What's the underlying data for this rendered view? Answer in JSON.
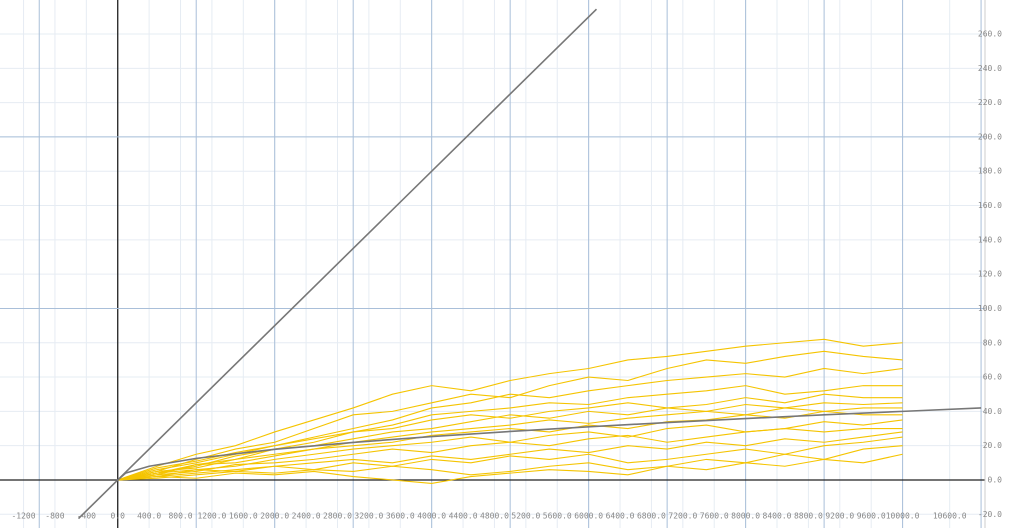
{
  "chart_data": {
    "type": "line",
    "xlim": [
      -1500,
      11050
    ],
    "ylim": [
      -24.5,
      274
    ],
    "xticks": [
      {
        "value": -1200,
        "label": "-1200"
      },
      {
        "value": -800,
        "label": "-800"
      },
      {
        "value": -400,
        "label": "-400"
      },
      {
        "value": 0,
        "label": "0.0"
      },
      {
        "value": 400,
        "label": "400.0"
      },
      {
        "value": 800,
        "label": "800.0"
      },
      {
        "value": 1200,
        "label": "1200.0"
      },
      {
        "value": 1600,
        "label": "1600.0"
      },
      {
        "value": 2000,
        "label": "2000.0"
      },
      {
        "value": 2400,
        "label": "2400.0"
      },
      {
        "value": 2800,
        "label": "2800.0"
      },
      {
        "value": 3200,
        "label": "3200.0"
      },
      {
        "value": 3600,
        "label": "3600.0"
      },
      {
        "value": 4000,
        "label": "4000.0"
      },
      {
        "value": 4400,
        "label": "4400.0"
      },
      {
        "value": 4800,
        "label": "4800.0"
      },
      {
        "value": 5200,
        "label": "5200.0"
      },
      {
        "value": 5600,
        "label": "5600.0"
      },
      {
        "value": 6000,
        "label": "6000.0"
      },
      {
        "value": 6400,
        "label": "6400.0"
      },
      {
        "value": 6800,
        "label": "6800.0"
      },
      {
        "value": 7200,
        "label": "7200.0"
      },
      {
        "value": 7600,
        "label": "7600.0"
      },
      {
        "value": 8000,
        "label": "8000.0"
      },
      {
        "value": 8400,
        "label": "8400.0"
      },
      {
        "value": 8800,
        "label": "8800.0"
      },
      {
        "value": 9200,
        "label": "9200.0"
      },
      {
        "value": 9600,
        "label": "9600.0"
      },
      {
        "value": 10000,
        "label": "10000.0"
      },
      {
        "value": 10600,
        "label": "10600.0"
      }
    ],
    "yticks": [
      {
        "value": -20,
        "label": "-20.0"
      },
      {
        "value": 0,
        "label": "0.0"
      },
      {
        "value": 20,
        "label": "20.0"
      },
      {
        "value": 40,
        "label": "40.0"
      },
      {
        "value": 60,
        "label": "60.0"
      },
      {
        "value": 80,
        "label": "80.0"
      },
      {
        "value": 100,
        "label": "100.0"
      },
      {
        "value": 120,
        "label": "120.0"
      },
      {
        "value": 140,
        "label": "140.0"
      },
      {
        "value": 160,
        "label": "160.0"
      },
      {
        "value": 180,
        "label": "180.0"
      },
      {
        "value": 200,
        "label": "200.0"
      },
      {
        "value": 220,
        "label": "220.0"
      },
      {
        "value": 240,
        "label": "240.0"
      },
      {
        "value": 260,
        "label": "260.0"
      }
    ],
    "xgrid_major": [
      -1000,
      0,
      1000,
      2000,
      3000,
      4000,
      5000,
      6000,
      7000,
      8000,
      9000,
      10000,
      11000
    ],
    "ygrid_major": [
      0,
      100,
      200
    ],
    "grid": true,
    "series": [
      {
        "color": "#f5c400",
        "x": [
          0,
          500,
          1000,
          1500,
          2000,
          2500,
          3000,
          3500,
          4000,
          4500,
          5000,
          5500,
          6000,
          6500,
          7000,
          7500,
          8000,
          8500,
          9000,
          9500,
          10000
        ],
        "values": [
          0,
          8,
          15,
          20,
          28,
          35,
          42,
          50,
          55,
          52,
          58,
          62,
          65,
          70,
          72,
          75,
          78,
          80,
          82,
          78,
          80
        ]
      },
      {
        "color": "#f5c400",
        "x": [
          0,
          500,
          1000,
          1500,
          2000,
          2500,
          3000,
          3500,
          4000,
          4500,
          5000,
          5500,
          6000,
          6500,
          7000,
          7500,
          8000,
          8500,
          9000,
          9500,
          10000
        ],
        "values": [
          0,
          5,
          12,
          18,
          22,
          30,
          38,
          40,
          45,
          50,
          48,
          55,
          60,
          58,
          65,
          70,
          68,
          72,
          75,
          72,
          70
        ]
      },
      {
        "color": "#f5c400",
        "x": [
          0,
          500,
          1000,
          1500,
          2000,
          2500,
          3000,
          3500,
          4000,
          4500,
          5000,
          5500,
          6000,
          6500,
          7000,
          7500,
          8000,
          8500,
          9000,
          9500,
          10000
        ],
        "values": [
          0,
          6,
          10,
          15,
          20,
          25,
          30,
          35,
          42,
          45,
          50,
          48,
          52,
          55,
          58,
          60,
          62,
          60,
          65,
          62,
          65
        ]
      },
      {
        "color": "#f5c400",
        "x": [
          0,
          500,
          1000,
          1500,
          2000,
          2500,
          3000,
          3500,
          4000,
          4500,
          5000,
          5500,
          6000,
          6500,
          7000,
          7500,
          8000,
          8500,
          9000,
          9500,
          10000
        ],
        "values": [
          0,
          4,
          8,
          14,
          18,
          22,
          28,
          32,
          38,
          40,
          42,
          45,
          44,
          48,
          50,
          52,
          55,
          50,
          52,
          55,
          55
        ]
      },
      {
        "color": "#f5c400",
        "x": [
          0,
          500,
          1000,
          1500,
          2000,
          2500,
          3000,
          3500,
          4000,
          4500,
          5000,
          5500,
          6000,
          6500,
          7000,
          7500,
          8000,
          8500,
          9000,
          9500,
          10000
        ],
        "values": [
          0,
          7,
          11,
          16,
          20,
          24,
          28,
          30,
          35,
          38,
          36,
          40,
          42,
          45,
          42,
          44,
          48,
          45,
          50,
          48,
          48
        ]
      },
      {
        "color": "#f5c400",
        "x": [
          0,
          500,
          1000,
          1500,
          2000,
          2500,
          3000,
          3500,
          4000,
          4500,
          5000,
          5500,
          6000,
          6500,
          7000,
          7500,
          8000,
          8500,
          9000,
          9500,
          10000
        ],
        "values": [
          0,
          3,
          9,
          12,
          18,
          20,
          24,
          28,
          30,
          34,
          38,
          36,
          40,
          38,
          42,
          40,
          44,
          42,
          45,
          44,
          45
        ]
      },
      {
        "color": "#f5c400",
        "x": [
          0,
          500,
          1000,
          1500,
          2000,
          2500,
          3000,
          3500,
          4000,
          4500,
          5000,
          5500,
          6000,
          6500,
          7000,
          7500,
          8000,
          8500,
          9000,
          9500,
          10000
        ],
        "values": [
          0,
          5,
          7,
          12,
          15,
          18,
          22,
          25,
          28,
          30,
          32,
          35,
          33,
          36,
          38,
          40,
          38,
          42,
          40,
          42,
          42
        ]
      },
      {
        "color": "#f5c400",
        "x": [
          0,
          500,
          1000,
          1500,
          2000,
          2500,
          3000,
          3500,
          4000,
          4500,
          5000,
          5500,
          6000,
          6500,
          7000,
          7500,
          8000,
          8500,
          9000,
          9500,
          10000
        ],
        "values": [
          0,
          4,
          9,
          10,
          14,
          18,
          20,
          22,
          26,
          28,
          30,
          28,
          32,
          30,
          34,
          35,
          38,
          36,
          40,
          38,
          38
        ]
      },
      {
        "color": "#f5c400",
        "x": [
          0,
          500,
          1000,
          1500,
          2000,
          2500,
          3000,
          3500,
          4000,
          4500,
          5000,
          5500,
          6000,
          6500,
          7000,
          7500,
          8000,
          8500,
          9000,
          9500,
          10000
        ],
        "values": [
          0,
          2,
          6,
          8,
          12,
          15,
          18,
          20,
          22,
          25,
          22,
          26,
          28,
          25,
          30,
          32,
          28,
          30,
          34,
          32,
          35
        ]
      },
      {
        "color": "#f5c400",
        "x": [
          0,
          500,
          1000,
          1500,
          2000,
          2500,
          3000,
          3500,
          4000,
          4500,
          5000,
          5500,
          6000,
          6500,
          7000,
          7500,
          8000,
          8500,
          9000,
          9500,
          10000
        ],
        "values": [
          0,
          3,
          5,
          9,
          10,
          12,
          15,
          18,
          16,
          20,
          22,
          20,
          24,
          26,
          22,
          25,
          28,
          30,
          28,
          30,
          30
        ]
      },
      {
        "color": "#f5c400",
        "x": [
          0,
          500,
          1000,
          1500,
          2000,
          2500,
          3000,
          3500,
          4000,
          4500,
          5000,
          5500,
          6000,
          6500,
          7000,
          7500,
          8000,
          8500,
          9000,
          9500,
          10000
        ],
        "values": [
          0,
          2,
          4,
          6,
          8,
          10,
          12,
          10,
          14,
          12,
          15,
          18,
          16,
          20,
          18,
          22,
          20,
          24,
          22,
          25,
          28
        ]
      },
      {
        "color": "#f5c400",
        "x": [
          0,
          500,
          1000,
          1500,
          2000,
          2500,
          3000,
          3500,
          4000,
          4500,
          5000,
          5500,
          6000,
          6500,
          7000,
          7500,
          8000,
          8500,
          9000,
          9500,
          10000
        ],
        "values": [
          0,
          4,
          6,
          5,
          8,
          6,
          10,
          8,
          12,
          10,
          14,
          12,
          15,
          10,
          12,
          15,
          18,
          15,
          20,
          22,
          25
        ]
      },
      {
        "color": "#f5c400",
        "x": [
          0,
          500,
          1000,
          1500,
          2000,
          2500,
          3000,
          3500,
          4000,
          4500,
          5000,
          5500,
          6000,
          6500,
          7000,
          7500,
          8000,
          8500,
          9000,
          9500,
          10000
        ],
        "values": [
          0,
          1,
          3,
          5,
          4,
          6,
          5,
          8,
          6,
          3,
          5,
          8,
          10,
          6,
          8,
          12,
          10,
          15,
          12,
          18,
          20
        ]
      },
      {
        "color": "#f5c400",
        "x": [
          0,
          500,
          1000,
          1500,
          2000,
          2500,
          3000,
          3500,
          4000,
          4500,
          5000,
          5500,
          6000,
          6500,
          7000,
          7500,
          8000,
          8500,
          9000,
          9500,
          10000
        ],
        "values": [
          0,
          2,
          1,
          4,
          3,
          5,
          2,
          0,
          -2,
          2,
          4,
          6,
          5,
          3,
          8,
          6,
          10,
          8,
          12,
          10,
          15
        ]
      },
      {
        "color": "#777777",
        "x": [
          -500,
          6100
        ],
        "values": [
          -22.5,
          274.5
        ]
      },
      {
        "color": "#777777",
        "x": [
          0,
          100,
          400,
          1000,
          2000,
          3000,
          4000,
          5000,
          6000,
          7000,
          8000,
          9000,
          10000,
          11000
        ],
        "values": [
          0,
          4,
          8,
          12.6,
          17.9,
          21.9,
          25.3,
          28.3,
          31,
          33.5,
          35.8,
          38,
          40,
          42
        ]
      }
    ]
  }
}
